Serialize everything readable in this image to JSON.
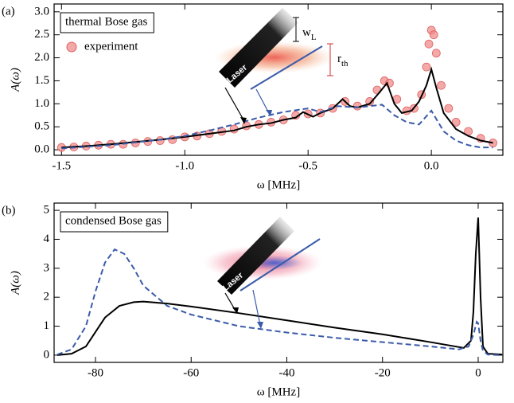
{
  "chart_data": [
    {
      "type": "line",
      "panel_label": "(a)",
      "annotation": "thermal Bose gas",
      "xlabel": "ω [MHz]",
      "ylabel": "A(ω)",
      "xlim": [
        -1.53,
        0.29
      ],
      "ylim": [
        -0.12,
        3.17
      ],
      "xticks": [
        -1.5,
        {
          "value": -1.0,
          "label": "-1.0"
        },
        -0.5,
        {
          "value": 0.0,
          "label": "0.0"
        }
      ],
      "yticks": [
        {
          "value": 0.0,
          "label": "0.0"
        },
        0.5,
        {
          "value": 1.0,
          "label": "1.0"
        },
        1.5,
        {
          "value": 2.0,
          "label": "2.0"
        },
        2.5,
        {
          "value": 3.0,
          "label": "3.0"
        }
      ],
      "inset": {
        "laser": "Laser",
        "w": "w",
        "w_sub": "L",
        "r": "r",
        "r_sub": "th"
      },
      "series": [
        {
          "name": "experiment",
          "style": "markers",
          "color": "#f08c8c",
          "x": [
            -1.5,
            -1.45,
            -1.4,
            -1.35,
            -1.3,
            -1.25,
            -1.2,
            -1.15,
            -1.1,
            -1.05,
            -1.0,
            -0.95,
            -0.9,
            -0.85,
            -0.8,
            -0.75,
            -0.7,
            -0.65,
            -0.6,
            -0.55,
            -0.5,
            -0.45,
            -0.4,
            -0.35,
            -0.3,
            -0.25,
            -0.22,
            -0.19,
            -0.17,
            -0.14,
            -0.1,
            -0.07,
            -0.04,
            -0.02,
            -0.01,
            0.0,
            0.01,
            0.02,
            0.04,
            0.07,
            0.1,
            0.15,
            0.2,
            0.25
          ],
          "values": [
            0.05,
            0.06,
            0.08,
            0.1,
            0.12,
            0.12,
            0.15,
            0.18,
            0.2,
            0.22,
            0.28,
            0.3,
            0.35,
            0.4,
            0.45,
            0.52,
            0.55,
            0.6,
            0.65,
            0.75,
            0.78,
            0.8,
            0.9,
            1.05,
            0.95,
            1.05,
            1.3,
            1.5,
            1.45,
            1.1,
            0.85,
            0.9,
            1.2,
            1.8,
            2.3,
            2.6,
            2.5,
            2.1,
            1.4,
            0.9,
            0.6,
            0.4,
            0.25,
            0.15
          ]
        },
        {
          "style": "solid",
          "color": "#000000",
          "x": [
            -1.5,
            -1.4,
            -1.3,
            -1.2,
            -1.1,
            -1.0,
            -0.9,
            -0.8,
            -0.75,
            -0.7,
            -0.65,
            -0.6,
            -0.55,
            -0.52,
            -0.48,
            -0.45,
            -0.4,
            -0.36,
            -0.33,
            -0.3,
            -0.25,
            -0.21,
            -0.18,
            -0.15,
            -0.12,
            -0.08,
            -0.05,
            -0.02,
            0.0,
            0.02,
            0.05,
            0.1,
            0.15,
            0.2,
            0.25
          ],
          "values": [
            0.05,
            0.08,
            0.12,
            0.17,
            0.22,
            0.28,
            0.35,
            0.42,
            0.5,
            0.55,
            0.58,
            0.65,
            0.7,
            0.82,
            0.72,
            0.8,
            0.9,
            1.1,
            0.95,
            0.92,
            1.0,
            1.25,
            1.45,
            1.0,
            0.8,
            0.85,
            1.05,
            1.4,
            1.75,
            1.35,
            0.8,
            0.45,
            0.3,
            0.2,
            0.15
          ]
        },
        {
          "style": "dashed",
          "color": "#3a5ba8",
          "x": [
            -1.5,
            -1.3,
            -1.1,
            -1.0,
            -0.9,
            -0.8,
            -0.7,
            -0.6,
            -0.5,
            -0.45,
            -0.38,
            -0.3,
            -0.2,
            -0.15,
            -0.1,
            -0.05,
            0.0,
            0.05,
            0.1,
            0.15,
            0.2,
            0.25
          ],
          "values": [
            0.03,
            0.1,
            0.22,
            0.3,
            0.42,
            0.55,
            0.7,
            0.82,
            0.9,
            0.82,
            0.95,
            0.92,
            0.98,
            0.75,
            0.6,
            0.55,
            0.85,
            0.4,
            0.2,
            0.1,
            0.05,
            0.05
          ]
        }
      ]
    },
    {
      "type": "line",
      "panel_label": "(b)",
      "annotation": "condensed Bose gas",
      "xlabel": "ω [MHz]",
      "ylabel": "A(ω)",
      "xlim": [
        -88.65,
        5.16
      ],
      "ylim": [
        -0.25,
        5.25
      ],
      "xticks": [
        -80,
        -60,
        -40,
        -20,
        0
      ],
      "yticks": [
        0,
        1,
        2,
        3,
        4,
        5
      ],
      "inset": {
        "laser": "Laser"
      },
      "series": [
        {
          "style": "solid",
          "color": "#000000",
          "x": [
            -88,
            -85,
            -82,
            -80,
            -78,
            -75,
            -72,
            -70,
            -65,
            -60,
            -50,
            -40,
            -30,
            -20,
            -10,
            -3,
            -1.5,
            -1,
            -0.5,
            0,
            0.5,
            1,
            2,
            5
          ],
          "values": [
            0.0,
            0.05,
            0.3,
            0.8,
            1.3,
            1.7,
            1.83,
            1.85,
            1.78,
            1.68,
            1.45,
            1.2,
            0.95,
            0.72,
            0.45,
            0.25,
            0.5,
            1.5,
            3.5,
            4.75,
            2.0,
            0.3,
            0.05,
            0.02
          ]
        },
        {
          "style": "dashed",
          "color": "#3a5ba8",
          "x": [
            -88,
            -85,
            -82,
            -80,
            -78,
            -76,
            -74,
            -72,
            -70,
            -65,
            -60,
            -50,
            -40,
            -30,
            -20,
            -10,
            -4,
            -2,
            -1,
            -0.3,
            0,
            0.5,
            1,
            2,
            5
          ],
          "values": [
            0.02,
            0.2,
            1.0,
            2.2,
            3.2,
            3.65,
            3.5,
            3.0,
            2.4,
            1.7,
            1.4,
            1.0,
            0.78,
            0.6,
            0.45,
            0.3,
            0.2,
            0.3,
            0.7,
            1.15,
            1.1,
            0.5,
            0.15,
            0.02,
            0.0
          ]
        }
      ]
    }
  ]
}
